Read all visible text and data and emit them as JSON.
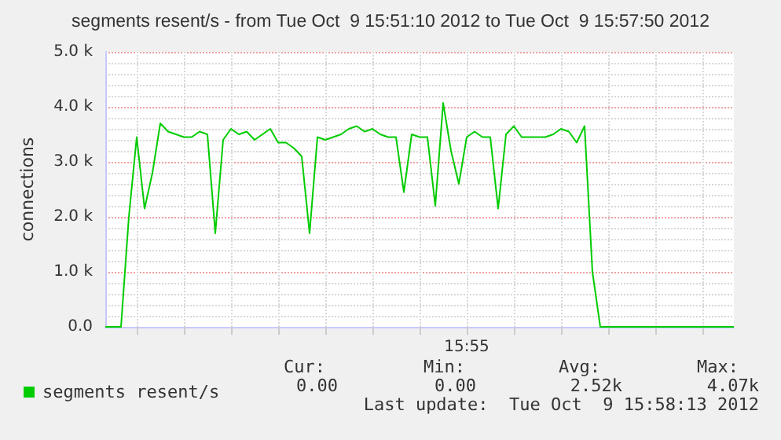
{
  "chart_data": {
    "type": "line",
    "title": "segments resent/s - from Tue Oct  9 15:51:10 2012 to Tue Oct  9 15:57:50 2012",
    "ylabel": "connections",
    "categories": [
      null,
      null,
      null,
      null,
      null,
      null,
      null,
      null,
      null,
      null,
      null,
      null,
      null,
      null,
      null,
      null,
      null,
      null,
      null,
      null,
      null,
      null,
      null,
      null,
      null,
      null,
      null,
      null,
      null,
      null,
      null,
      null,
      null,
      null,
      null,
      null,
      null,
      null,
      null,
      null,
      null,
      null,
      null,
      null,
      null,
      null,
      "15:55",
      null,
      null,
      null,
      null,
      null,
      null,
      null,
      null,
      null,
      null,
      null,
      null,
      null,
      null,
      null,
      null,
      null,
      null,
      null,
      null,
      null,
      null,
      null,
      null,
      null,
      null,
      null,
      null,
      null,
      null,
      null,
      null,
      null,
      null
    ],
    "series": [
      {
        "name": "segments resent/s",
        "color": "#00cc00",
        "values": [
          0,
          0,
          0,
          2000,
          3450,
          2150,
          2800,
          3700,
          3550,
          3500,
          3450,
          3450,
          3550,
          3500,
          1700,
          3400,
          3600,
          3500,
          3550,
          3400,
          3500,
          3600,
          3350,
          3350,
          3250,
          3100,
          1700,
          3450,
          3400,
          3450,
          3500,
          3600,
          3650,
          3550,
          3600,
          3500,
          3450,
          3450,
          2450,
          3500,
          3450,
          3450,
          2200,
          4070,
          3200,
          2600,
          3450,
          3550,
          3450,
          3450,
          2150,
          3500,
          3650,
          3450,
          3450,
          3450,
          3450,
          3500,
          3600,
          3550,
          3350,
          3650,
          1000,
          0,
          0,
          0,
          0,
          0,
          0,
          0,
          0,
          0,
          0,
          0,
          0,
          0,
          0,
          0,
          0,
          0,
          0
        ]
      }
    ],
    "ylim": [
      0,
      5000
    ],
    "yticks": [
      {
        "value": 0,
        "label": "0.0"
      },
      {
        "value": 200,
        "label": null
      },
      {
        "value": 400,
        "label": null
      },
      {
        "value": 600,
        "label": null
      },
      {
        "value": 800,
        "label": null
      },
      {
        "value": 1000,
        "label": "1.0 k"
      },
      {
        "value": 1200,
        "label": null
      },
      {
        "value": 1400,
        "label": null
      },
      {
        "value": 1600,
        "label": null
      },
      {
        "value": 1800,
        "label": null
      },
      {
        "value": 2000,
        "label": "2.0 k"
      },
      {
        "value": 2200,
        "label": null
      },
      {
        "value": 2400,
        "label": null
      },
      {
        "value": 2600,
        "label": null
      },
      {
        "value": 2800,
        "label": null
      },
      {
        "value": 3000,
        "label": "3.0 k"
      },
      {
        "value": 3200,
        "label": null
      },
      {
        "value": 3400,
        "label": null
      },
      {
        "value": 3600,
        "label": null
      },
      {
        "value": 3800,
        "label": null
      },
      {
        "value": 4000,
        "label": "4.0 k"
      },
      {
        "value": 4200,
        "label": null
      },
      {
        "value": 4400,
        "label": null
      },
      {
        "value": 4600,
        "label": null
      },
      {
        "value": 4800,
        "label": null
      },
      {
        "value": 5000,
        "label": "5.0 k"
      }
    ],
    "grid": true,
    "legend": "bottom left",
    "marker": "none",
    "line_style": "solid",
    "annotations": [
      "Cur:",
      "Min:",
      "Avg:",
      "Max:",
      "0.00",
      "0.00",
      "2.52k",
      "4.07k",
      "Last update:  Tue Oct  9 15:58:13 2012"
    ]
  }
}
